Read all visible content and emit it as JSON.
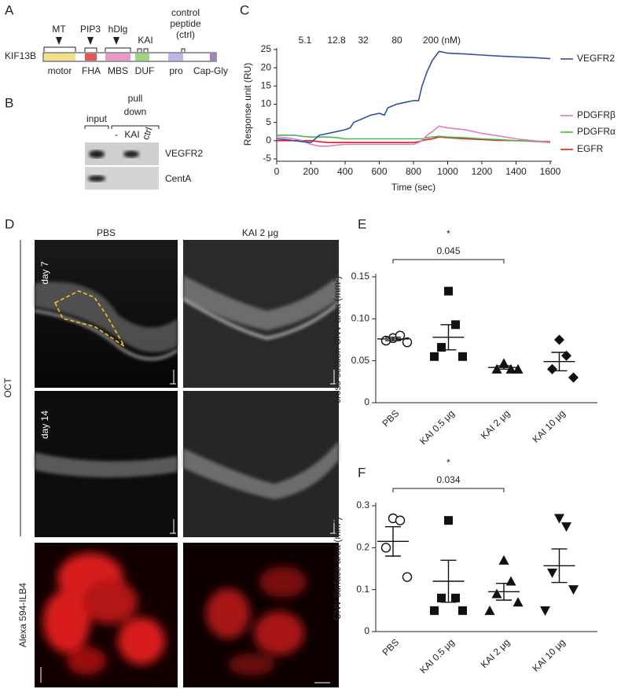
{
  "diagram_a": {
    "label": "A",
    "gene": "KIF13B",
    "sites": [
      "MT",
      "PIP3",
      "hDlg",
      "KAI"
    ],
    "ctrl": [
      "control",
      "peptide",
      "(ctrl)"
    ],
    "domains": [
      "motor",
      "FHA",
      "MBS",
      "DUF",
      "pro",
      "Cap-Gly"
    ]
  },
  "blot_b": {
    "label": "B",
    "input": "input",
    "pull_down": [
      "pull",
      "down"
    ],
    "lanes": [
      "-",
      "KAI",
      "ctrl"
    ],
    "proteins": [
      "VEGFR2",
      "CentA"
    ]
  },
  "images_d": {
    "label": "D",
    "columns": [
      "PBS",
      "KAI 2 μg"
    ],
    "rows": [
      "day 7",
      "day 14"
    ],
    "oct": "OCT",
    "stain": "Alexa 594-ILB4"
  },
  "chart_data": [
    {
      "type": "line",
      "panel": "C",
      "xlabel": "Time (sec)",
      "ylabel": "Response unit (RU)",
      "annotations": [
        "5.1",
        "12.8",
        "32",
        "80",
        "200 (nM)"
      ],
      "x": [
        0,
        50,
        100,
        150,
        200,
        250,
        300,
        350,
        400,
        430,
        450,
        500,
        550,
        600,
        630,
        650,
        700,
        750,
        800,
        830,
        850,
        880,
        910,
        950,
        1000,
        1100,
        1200,
        1300,
        1400,
        1500,
        1600
      ],
      "series": [
        {
          "name": "VEGFR2",
          "color": "#2f4fa8",
          "values": [
            0.5,
            0.3,
            0,
            -0.3,
            -0.5,
            1.5,
            2,
            2.5,
            3,
            3.5,
            5,
            6,
            7,
            7.5,
            7,
            9,
            10,
            10.5,
            11,
            11,
            15,
            19,
            22,
            24.5,
            24,
            23.8,
            23.5,
            23.2,
            23,
            22.8,
            22.5
          ]
        },
        {
          "name": "PDGFRβ",
          "color": "#e07cc0",
          "values": [
            1,
            0.8,
            0.5,
            0,
            -1,
            -1.5,
            -1.5,
            -1.2,
            -1,
            -1,
            -1,
            -1,
            -1,
            -1,
            -1,
            -1,
            -1,
            -1,
            -1,
            -0.5,
            0,
            1.5,
            2.5,
            4,
            3.5,
            3,
            2,
            1.3,
            0.5,
            0,
            -0.5
          ]
        },
        {
          "name": "PDGFRα",
          "color": "#4cb84c",
          "values": [
            1.5,
            1.5,
            1.5,
            1.2,
            1,
            1,
            1,
            0.8,
            0.5,
            0.5,
            0.5,
            0.5,
            0.5,
            0.5,
            0.5,
            0.5,
            0.5,
            0.5,
            0.5,
            0.5,
            0.5,
            0.8,
            1,
            1.2,
            1,
            0.8,
            0.5,
            0.3,
            0,
            -0.2,
            -0.5
          ]
        },
        {
          "name": "EGFR",
          "color": "#e02020",
          "values": [
            0,
            0,
            0,
            0,
            0,
            -0.3,
            -0.5,
            -0.5,
            -0.5,
            -0.5,
            -0.5,
            -0.5,
            -0.5,
            -0.5,
            -0.5,
            -0.5,
            -0.5,
            -0.5,
            -0.5,
            -0.3,
            0,
            0.3,
            0.5,
            1,
            0.8,
            0.5,
            0.3,
            0.1,
            0,
            -0.1,
            -0.3
          ]
        }
      ],
      "xlim": [
        0,
        1600
      ],
      "xticks": [
        0,
        200,
        400,
        600,
        800,
        1000,
        1200,
        1400,
        1600
      ],
      "ylim": [
        -5,
        25
      ],
      "yticks": [
        -5,
        0,
        5,
        10,
        15,
        20,
        25
      ]
    },
    {
      "type": "strip",
      "panel": "E",
      "ylabel": "cross-section CNV area (mm²)",
      "significance": "*",
      "p_value": "0.045",
      "categories": [
        "PBS",
        "KAI 0.5 μg",
        "KAI 2 μg",
        "KAI 10 μg"
      ],
      "markers": [
        "circle-open",
        "square",
        "triangle",
        "diamond"
      ],
      "groups": [
        [
          0.077,
          0.08,
          0.074,
          0.072
        ],
        [
          0.133,
          0.093,
          0.066,
          0.055,
          0.055
        ],
        [
          0.047,
          0.04,
          0.04,
          0.04
        ],
        [
          0.075,
          0.056,
          0.04,
          0.03
        ]
      ],
      "means": [
        0.076,
        0.078,
        0.042,
        0.049
      ],
      "sem": [
        0.002,
        0.015,
        0.002,
        0.011
      ],
      "ylim": [
        0,
        0.15
      ],
      "yticks": [
        0,
        0.05,
        {
          "value": 0.1,
          "label": "0.10"
        },
        0.15
      ]
    },
    {
      "type": "strip",
      "panel": "F",
      "ylabel": "CNV surface area (mm²)",
      "significance": "*",
      "p_value": "0.034",
      "categories": [
        "PBS",
        "KAI 0.5 μg",
        "KAI 2 μg",
        "KAI 10 μg"
      ],
      "markers": [
        "circle-open",
        "square",
        "triangle",
        "triangle-down"
      ],
      "groups": [
        [
          0.27,
          0.265,
          0.2,
          0.13
        ],
        [
          0.265,
          0.08,
          0.08,
          0.05,
          0.05
        ],
        [
          0.17,
          0.12,
          0.09,
          0.07,
          0.05
        ],
        [
          0.27,
          0.25,
          0.14,
          0.1,
          0.05
        ]
      ],
      "means": [
        0.215,
        0.12,
        0.095,
        0.157
      ],
      "sem": [
        0.035,
        0.05,
        0.02,
        0.04
      ],
      "ylim": [
        0,
        0.3
      ],
      "yticks": [
        0,
        0.1,
        0.2,
        0.3
      ]
    }
  ]
}
